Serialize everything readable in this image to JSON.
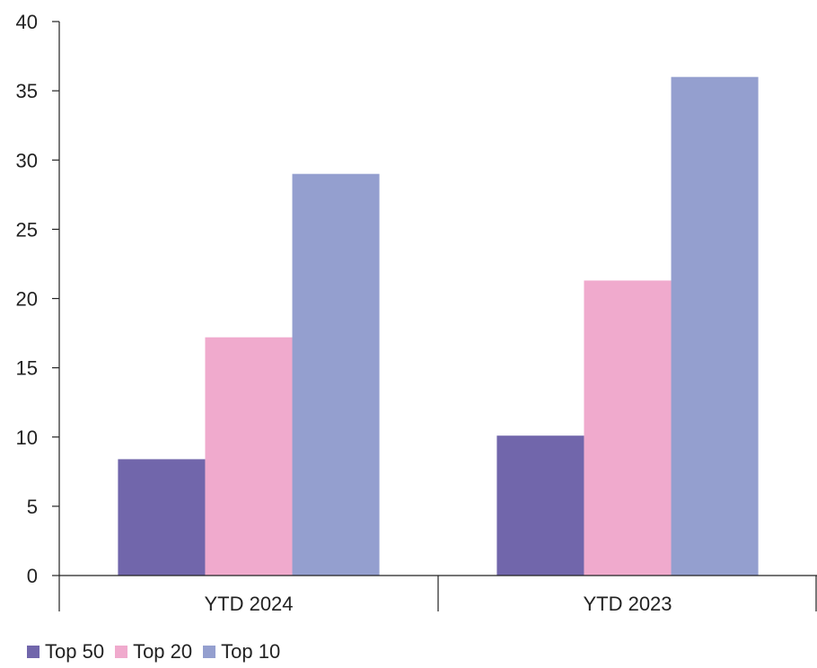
{
  "chart_data": {
    "type": "bar",
    "categories": [
      "YTD 2024",
      "YTD 2023"
    ],
    "series": [
      {
        "name": "Top 50",
        "values": [
          8.4,
          10.1
        ],
        "color": "#7166ab"
      },
      {
        "name": "Top 20",
        "values": [
          17.2,
          21.3
        ],
        "color": "#f0aacd"
      },
      {
        "name": "Top 10",
        "values": [
          29.0,
          36.0
        ],
        "color": "#949fcf"
      }
    ],
    "ylim": [
      0,
      40
    ],
    "yticks": [
      "0",
      "5",
      "10",
      "15",
      "20",
      "25",
      "30",
      "35",
      "40"
    ],
    "grid": false,
    "legend_position": "bottom-left"
  }
}
